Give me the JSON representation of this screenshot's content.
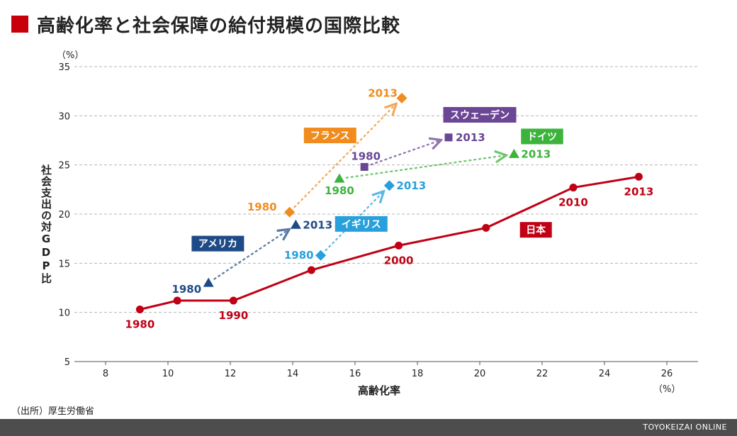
{
  "title": "高齢化率と社会保障の給付規模の国際比較",
  "source": "（出所）厚生労働省",
  "footer": "TOYOKEIZAI ONLINE",
  "colors": {
    "title_square": "#c8000a",
    "japan": "#c00014",
    "france": "#f08c1e",
    "sweden": "#6a4694",
    "germany": "#3cb43c",
    "uk": "#28a0dc",
    "usa": "#1e4b87"
  },
  "chart_data": {
    "type": "line",
    "title": "高齢化率と社会保障の給付規模の国際比較",
    "xlabel": "高齢化率",
    "ylabel": "社会支出の対GDP比",
    "x_unit": "（%）",
    "y_unit": "（%）",
    "xlim": [
      7,
      27
    ],
    "ylim": [
      5,
      35
    ],
    "x_ticks": [
      8,
      10,
      12,
      14,
      16,
      18,
      20,
      22,
      24,
      26
    ],
    "y_ticks": [
      5,
      10,
      15,
      20,
      25,
      30,
      35
    ],
    "grid": "horizontal-dashed",
    "series": [
      {
        "name": "日本",
        "marker": "circle",
        "color": "#c00014",
        "points": [
          {
            "x": 9.1,
            "y": 10.3,
            "label": "1980"
          },
          {
            "x": 10.3,
            "y": 11.2,
            "label": ""
          },
          {
            "x": 12.1,
            "y": 11.2,
            "label": "1990"
          },
          {
            "x": 14.6,
            "y": 14.3,
            "label": ""
          },
          {
            "x": 17.4,
            "y": 16.8,
            "label": "2000"
          },
          {
            "x": 20.2,
            "y": 18.6,
            "label": ""
          },
          {
            "x": 23.0,
            "y": 22.7,
            "label": "2010"
          },
          {
            "x": 25.1,
            "y": 23.8,
            "label": "2013"
          }
        ]
      },
      {
        "name": "フランス",
        "marker": "diamond",
        "color": "#f08c1e",
        "points": [
          {
            "x": 13.9,
            "y": 20.2,
            "label": "1980"
          },
          {
            "x": 17.5,
            "y": 31.8,
            "label": "2013"
          }
        ]
      },
      {
        "name": "スウェーデン",
        "marker": "square",
        "color": "#6a4694",
        "points": [
          {
            "x": 16.3,
            "y": 24.8,
            "label": "1980"
          },
          {
            "x": 19.0,
            "y": 27.8,
            "label": "2013"
          }
        ]
      },
      {
        "name": "ドイツ",
        "marker": "triangle",
        "color": "#3cb43c",
        "points": [
          {
            "x": 15.5,
            "y": 23.6,
            "label": "1980"
          },
          {
            "x": 21.1,
            "y": 26.1,
            "label": "2013"
          }
        ]
      },
      {
        "name": "イギリス",
        "marker": "diamond",
        "color": "#28a0dc",
        "points": [
          {
            "x": 14.9,
            "y": 15.8,
            "label": "1980"
          },
          {
            "x": 17.1,
            "y": 22.9,
            "label": "2013"
          }
        ]
      },
      {
        "name": "アメリカ",
        "marker": "triangle",
        "color": "#1e4b87",
        "points": [
          {
            "x": 11.3,
            "y": 13.0,
            "label": "1980"
          },
          {
            "x": 14.1,
            "y": 18.9,
            "label": "2013"
          }
        ]
      }
    ]
  }
}
